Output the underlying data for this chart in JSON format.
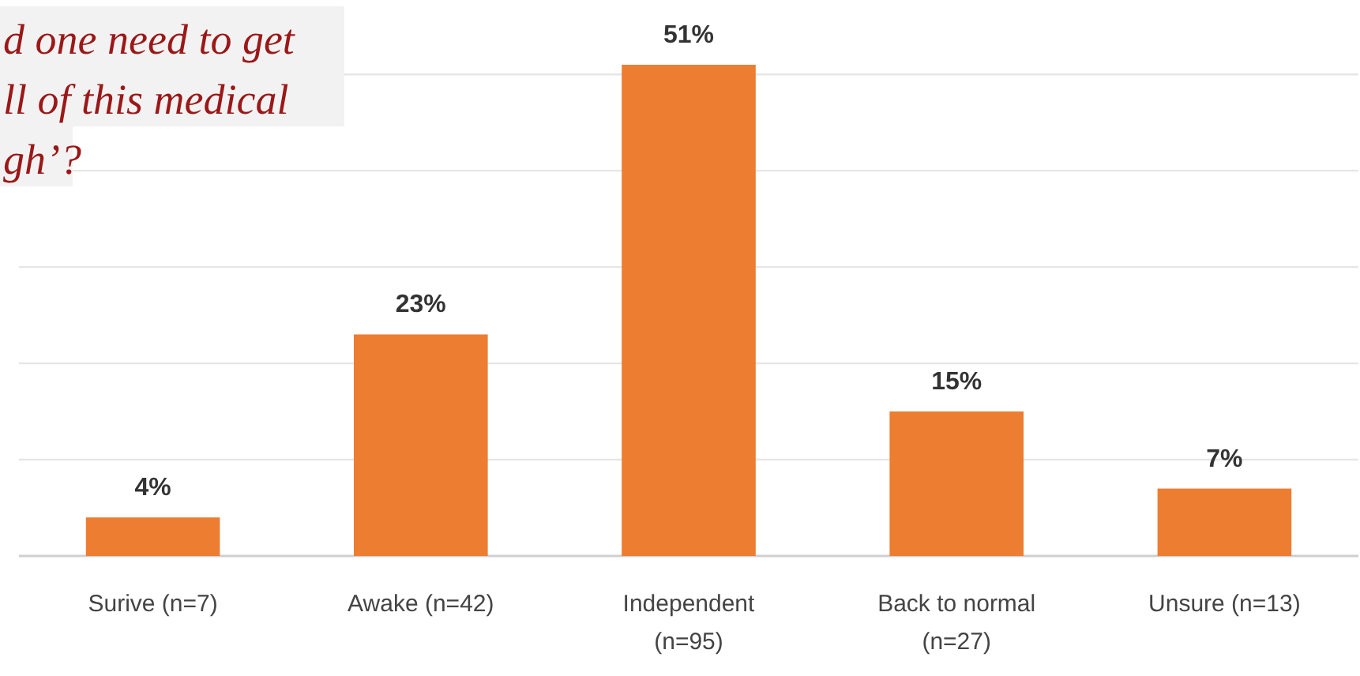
{
  "chart_data": {
    "type": "bar",
    "title": "d one need to get\nll of this medical\ngh’?",
    "categories": [
      "Surive (n=7)",
      "Awake (n=42)",
      "Independent\n(n=95)",
      "Back to normal\n(n=27)",
      "Unsure (n=13)"
    ],
    "values": [
      4,
      23,
      51,
      15,
      7
    ],
    "color": "#ed7d31",
    "data_labels": true,
    "value_labels": [
      "4%",
      "23%",
      "51%",
      "15%",
      "7%"
    ],
    "yticks": [
      {
        "value": 0,
        "label": null
      },
      {
        "value": 10,
        "label": null
      },
      {
        "value": 20,
        "label": null
      },
      {
        "value": 30,
        "label": null
      },
      {
        "value": 40,
        "label": null
      },
      {
        "value": 50,
        "label": null
      }
    ],
    "grid": "y",
    "tick_labels": "x"
  }
}
